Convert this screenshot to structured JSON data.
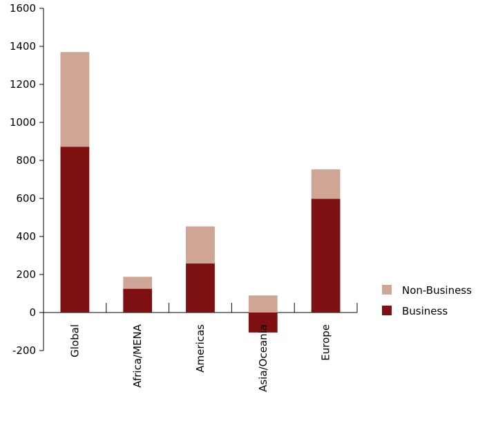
{
  "chart_data": {
    "type": "bar",
    "stacked": true,
    "categories": [
      "Global",
      "Africa/MENA",
      "Americas",
      "Asia/Oceania",
      "Europe"
    ],
    "series": [
      {
        "name": "Business",
        "color": "#7f1012",
        "values": [
          872,
          125,
          258,
          -105,
          598
        ]
      },
      {
        "name": "Non-Business",
        "color": "#cfa595",
        "values": [
          498,
          63,
          195,
          90,
          155
        ]
      }
    ],
    "y_ticks": [
      "1600",
      "1400",
      "1200",
      "1000",
      "800",
      "600",
      "400",
      "200",
      "0",
      "-200"
    ],
    "ylim": [
      -200,
      1600
    ],
    "legend_position": "right",
    "grid": false,
    "title": "",
    "xlabel": "",
    "ylabel": ""
  }
}
